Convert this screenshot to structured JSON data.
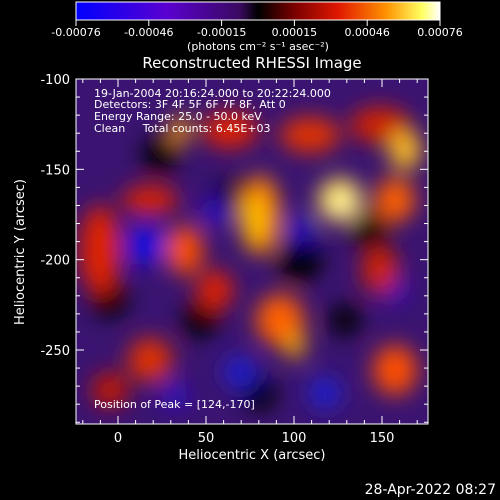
{
  "colorbar": {
    "tick_labels": [
      "-0.00076",
      "-0.00046",
      "-0.00015",
      "0.00015",
      "0.00046",
      "0.00076"
    ],
    "units_label": "(photons cm⁻² s⁻¹ asec⁻²)"
  },
  "plot": {
    "title": "Reconstructed RHESSI Image",
    "xlabel": "Heliocentric X (arcsec)",
    "ylabel": "Heliocentric Y (arcsec)",
    "x_ticks": [
      "0",
      "50",
      "100",
      "150"
    ],
    "y_ticks": [
      "-100",
      "-150",
      "-200",
      "-250"
    ]
  },
  "image_info": {
    "time_range": "19-Jan-2004 20:16:24.000 to 20:22:24.000",
    "detectors": "Detectors: 3F 4F 5F 6F 7F 8F, Att 0",
    "energy_range": "Energy Range: 25.0 - 50.0 keV",
    "method_counts": "Clean     Total counts: 6.45E+03",
    "peak_position": "Position of Peak = [124,-170]"
  },
  "footer": {
    "timestamp": "28-Apr-2022 08:27"
  },
  "colors": {
    "background": "#000000",
    "colorbar_negative": "#0000ff",
    "colorbar_zero": "#000000",
    "colorbar_positive_high": "#ffffff"
  }
}
